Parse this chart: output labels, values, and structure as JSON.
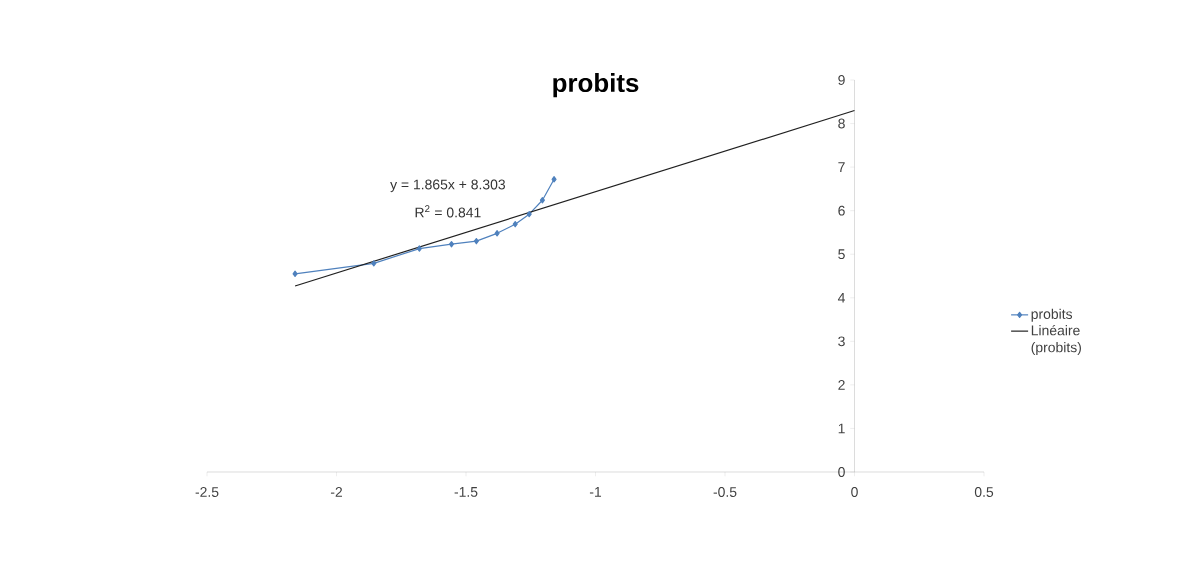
{
  "chart_data": {
    "type": "line",
    "title": "probits",
    "series": [
      {
        "name": "probits",
        "color": "#4f81bd",
        "x": [
          -2.16,
          -1.856,
          -1.68,
          -1.556,
          -1.46,
          -1.38,
          -1.31,
          -1.256,
          -1.205,
          -1.16
        ],
        "values": [
          4.55,
          4.79,
          5.13,
          5.23,
          5.3,
          5.48,
          5.69,
          5.92,
          6.24,
          6.72
        ]
      },
      {
        "name": "Linéaire (probits)",
        "color": "#202020",
        "marker": "none",
        "x": [
          -2.16,
          0
        ],
        "values": [
          4.27,
          8.3
        ]
      }
    ],
    "annotations": [
      "y = 1.865x + 8.303",
      "R$^{2}$ = 0.841"
    ],
    "xlim": [
      -2.5,
      0.5
    ],
    "xticks": [
      -2.5,
      -2,
      -1.5,
      -1,
      -0.5,
      0,
      0.5
    ],
    "ylim": [
      0,
      9
    ],
    "yticks": [
      0,
      1,
      2,
      3,
      4,
      5,
      6,
      7,
      8,
      9
    ],
    "marker": "diamond",
    "line_style": "solid",
    "grid": false,
    "legend": "right"
  }
}
